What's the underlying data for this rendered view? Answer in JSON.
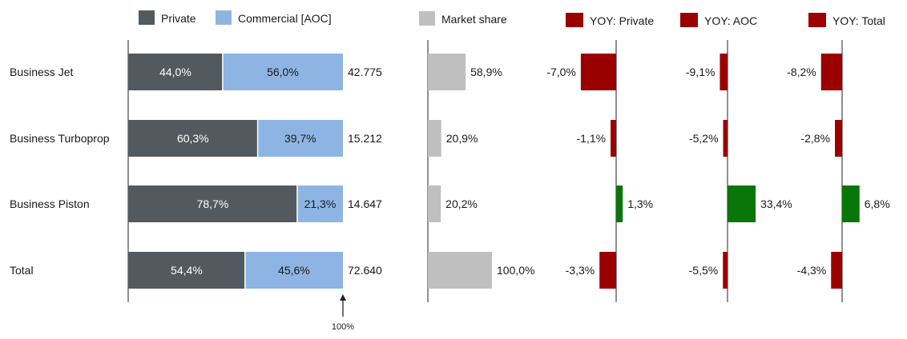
{
  "chart_data": {
    "type": "bar",
    "categories": [
      "Business Jet",
      "Business Turboprop",
      "Business Piston",
      "Total"
    ],
    "colors": {
      "private": "#525a5f",
      "commercial": "#8eb4e3",
      "market_share": "#bfbfbf",
      "yoy_negative": "#9b0000",
      "yoy_positive": "#087608",
      "axis": "#222222"
    },
    "split": {
      "series": [
        {
          "name": "Private",
          "values": [
            44.0,
            60.3,
            78.7,
            54.4
          ],
          "labels": [
            "44,0%",
            "60,3%",
            "78,7%",
            "54,4%"
          ]
        },
        {
          "name": "Commercial [AOC]",
          "values": [
            56.0,
            39.7,
            21.3,
            45.6
          ],
          "labels": [
            "56,0%",
            "39,7%",
            "21,3%",
            "45,6%"
          ]
        }
      ],
      "totals": [
        "42.775",
        "15.212",
        "14.647",
        "72.640"
      ],
      "marker_label": "100%"
    },
    "market_share": {
      "name": "Market share",
      "values": [
        58.9,
        20.9,
        20.2,
        100.0
      ],
      "labels": [
        "58,9%",
        "20,9%",
        "20,2%",
        "100,0%"
      ]
    },
    "yoy": [
      {
        "name": "YOY: Private",
        "values": [
          -7.0,
          -1.1,
          1.3,
          -3.3
        ],
        "labels": [
          "-7,0%",
          "-1,1%",
          "1,3%",
          "-3,3%"
        ]
      },
      {
        "name": "YOY: AOC",
        "values": [
          -9.1,
          -5.2,
          33.4,
          -5.5
        ],
        "labels": [
          "-9,1%",
          "-5,2%",
          "33,4%",
          "-5,5%"
        ]
      },
      {
        "name": "YOY: Total",
        "values": [
          -8.2,
          -2.8,
          6.8,
          -4.3
        ],
        "labels": [
          "-8,2%",
          "-2,8%",
          "6,8%",
          "-4,3%"
        ]
      }
    ]
  }
}
